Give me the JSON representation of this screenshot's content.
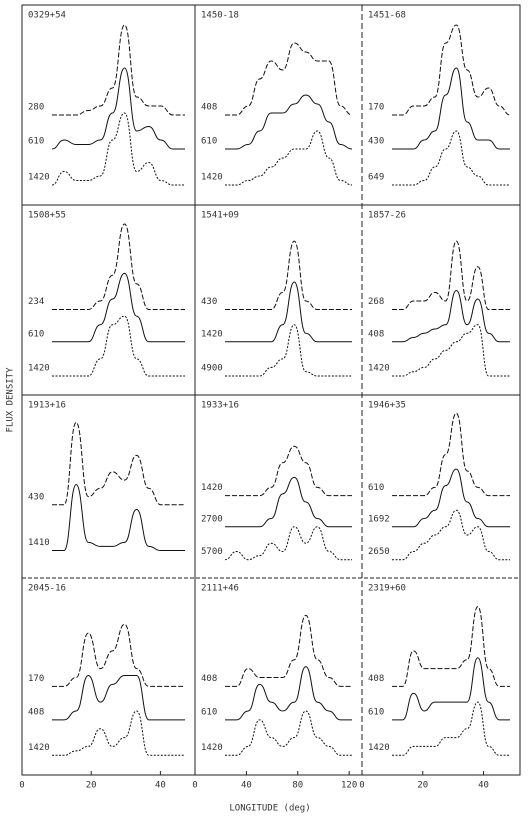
{
  "chart_data": {
    "type": "line",
    "ylabel": "FLUX DENSITY",
    "xlabel": "LONGITUDE (deg)",
    "columns": [
      {
        "xlim": [
          0,
          50
        ],
        "xticks": [
          0,
          20,
          40
        ]
      },
      {
        "xlim": [
          0,
          130
        ],
        "xticks": [
          0,
          40,
          80,
          120
        ]
      },
      {
        "xlim": [
          0,
          52
        ],
        "xticks": [
          0,
          20,
          40
        ]
      }
    ],
    "panels": [
      {
        "name": "0329+54",
        "series": [
          {
            "name": "280",
            "values": [
              0,
              0,
              0,
              0.5,
              1,
              3,
              10,
              2,
              1,
              1,
              0,
              0
            ]
          },
          {
            "name": "610",
            "values": [
              0,
              1,
              0.5,
              0.5,
              1,
              4,
              9,
              2,
              2.5,
              1,
              0,
              0
            ]
          },
          {
            "name": "1420",
            "values": [
              0,
              1.5,
              0.5,
              0.5,
              1,
              5,
              8,
              1.5,
              2.5,
              0.5,
              0,
              0
            ]
          }
        ]
      },
      {
        "name": "1450-18",
        "series": [
          {
            "name": "408",
            "values": [
              0,
              0,
              1,
              4,
              6,
              5,
              8,
              7,
              6,
              6,
              1,
              0
            ]
          },
          {
            "name": "610",
            "values": [
              0,
              0,
              0.5,
              2,
              4,
              4,
              5,
              6,
              5,
              3,
              0.5,
              0
            ]
          },
          {
            "name": "1420",
            "values": [
              0,
              0,
              0.5,
              1,
              2,
              3,
              4,
              4,
              6,
              3,
              0.5,
              0
            ]
          }
        ]
      },
      {
        "name": "1451-68",
        "series": [
          {
            "name": "170",
            "values": [
              0,
              0,
              1,
              1,
              2,
              8,
              10,
              5,
              2,
              3,
              1,
              0
            ]
          },
          {
            "name": "430",
            "values": [
              0,
              0,
              0,
              1,
              2,
              6,
              9,
              3,
              1,
              1,
              0,
              0
            ]
          },
          {
            "name": "649",
            "values": [
              0,
              0,
              0,
              0.5,
              2,
              4,
              6,
              2,
              1,
              0,
              0,
              0
            ]
          }
        ]
      },
      {
        "name": "1508+55",
        "series": [
          {
            "name": "234",
            "values": [
              0,
              0,
              0,
              0,
              1,
              4,
              10,
              3,
              0,
              0,
              0,
              0
            ]
          },
          {
            "name": "610",
            "values": [
              0,
              0,
              0,
              0,
              2,
              5,
              8,
              3,
              0,
              0,
              0,
              0
            ]
          },
          {
            "name": "1420",
            "values": [
              0,
              0,
              0,
              0,
              2,
              6,
              7,
              2,
              0,
              0,
              0,
              0
            ]
          }
        ]
      },
      {
        "name": "1541+09",
        "series": [
          {
            "name": "430",
            "values": [
              0,
              0,
              0,
              0,
              0,
              2,
              8,
              1,
              0,
              0,
              0,
              0
            ]
          },
          {
            "name": "1420",
            "values": [
              0,
              0,
              0,
              0,
              0,
              2,
              7,
              1,
              0,
              0,
              0,
              0
            ]
          },
          {
            "name": "4900",
            "values": [
              0,
              0,
              0,
              0,
              1,
              2,
              6,
              0.5,
              0,
              0,
              0,
              0
            ]
          }
        ]
      },
      {
        "name": "1857-26",
        "series": [
          {
            "name": "268",
            "values": [
              0,
              0,
              1,
              1,
              2,
              1,
              8,
              1,
              5,
              0,
              0,
              0
            ]
          },
          {
            "name": "408",
            "values": [
              0,
              0,
              0.5,
              1,
              1.5,
              2,
              6,
              2,
              5,
              1,
              0,
              0
            ]
          },
          {
            "name": "1420",
            "values": [
              0,
              0,
              0.5,
              1,
              2,
              3,
              4,
              5,
              6,
              0,
              0,
              0
            ]
          }
        ]
      },
      {
        "name": "1913+16",
        "series": [
          {
            "name": "430",
            "values": [
              0,
              0,
              10,
              1,
              2,
              4,
              3,
              6,
              2,
              0,
              0,
              0
            ]
          },
          {
            "name": "1410",
            "values": [
              0,
              0,
              8,
              1,
              0.5,
              0.5,
              1,
              5,
              0.5,
              0,
              0,
              0
            ]
          }
        ]
      },
      {
        "name": "1933+16",
        "series": [
          {
            "name": "1420",
            "values": [
              0,
              0,
              0,
              0,
              1,
              4,
              6,
              4,
              1,
              0,
              0,
              0
            ]
          },
          {
            "name": "2700",
            "values": [
              0,
              0,
              0,
              0,
              1,
              4,
              6,
              3,
              1,
              0,
              0,
              0
            ]
          },
          {
            "name": "5700",
            "values": [
              0,
              1,
              0,
              0.5,
              2,
              1,
              4,
              2,
              4,
              1,
              0,
              0
            ]
          }
        ]
      },
      {
        "name": "1946+35",
        "series": [
          {
            "name": "610",
            "values": [
              0,
              0,
              0,
              0,
              1,
              5,
              10,
              3,
              1,
              0,
              0,
              0
            ]
          },
          {
            "name": "1692",
            "values": [
              0,
              0,
              0,
              1,
              2,
              5,
              7,
              3,
              1,
              0,
              0,
              0
            ]
          },
          {
            "name": "2650",
            "values": [
              0,
              0,
              1,
              2,
              3,
              4,
              6,
              3,
              4,
              1,
              0,
              0
            ]
          }
        ]
      },
      {
        "name": "2045-16",
        "series": [
          {
            "name": "170",
            "values": [
              0,
              0,
              1,
              6,
              2,
              4,
              7,
              2,
              0,
              0,
              0,
              0
            ]
          },
          {
            "name": "408",
            "values": [
              0,
              0,
              1,
              5,
              2,
              4,
              5,
              5,
              0,
              0,
              0,
              0
            ]
          },
          {
            "name": "1420",
            "values": [
              0,
              0,
              0.5,
              1,
              3,
              1,
              2,
              5,
              0,
              0,
              0,
              0
            ]
          }
        ]
      },
      {
        "name": "2111+46",
        "series": [
          {
            "name": "408",
            "values": [
              0,
              0,
              2,
              1,
              1,
              1,
              3,
              8,
              3,
              1,
              0,
              0
            ]
          },
          {
            "name": "610",
            "values": [
              0,
              0,
              1,
              4,
              2,
              1,
              2,
              6,
              2,
              1,
              0,
              0
            ]
          },
          {
            "name": "1420",
            "values": [
              0,
              0,
              1,
              4,
              2,
              1,
              2,
              5,
              2,
              1,
              0,
              0
            ]
          }
        ]
      },
      {
        "name": "2319+60",
        "series": [
          {
            "name": "408",
            "values": [
              0,
              0,
              4,
              2,
              2,
              2,
              2,
              3,
              9,
              2,
              0,
              0
            ]
          },
          {
            "name": "610",
            "values": [
              0,
              0,
              3,
              1,
              2,
              2,
              2,
              2,
              7,
              2,
              0,
              0
            ]
          },
          {
            "name": "1420",
            "values": [
              0,
              0,
              1,
              1,
              1,
              2,
              2,
              3,
              6,
              1,
              0,
              0
            ]
          }
        ]
      }
    ]
  }
}
